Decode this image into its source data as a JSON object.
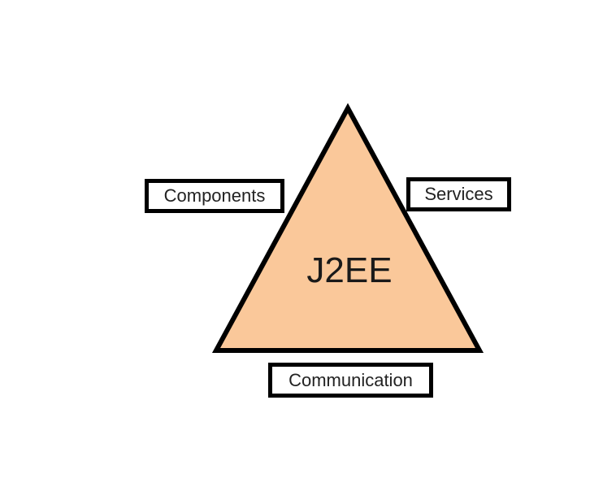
{
  "diagram": {
    "center_label": "J2EE",
    "labels": {
      "components": "Components",
      "services": "Services",
      "communication": "Communication"
    },
    "colors": {
      "triangle_fill": "#FAC89A",
      "stroke": "#000000",
      "background": "#FFFFFF"
    }
  }
}
